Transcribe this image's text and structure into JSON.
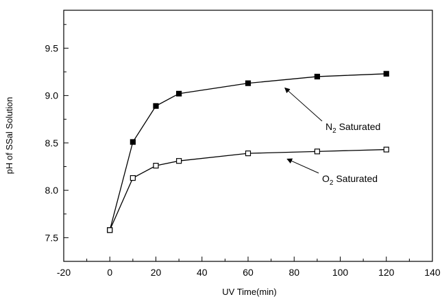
{
  "chart_data": {
    "type": "line",
    "xlabel": "UV Time(min)",
    "ylabel": "pH of SSal Solution",
    "xlim": [
      -20,
      140
    ],
    "ylim": [
      7.25,
      9.9
    ],
    "xticks": [
      -20,
      0,
      20,
      40,
      60,
      80,
      100,
      120,
      140
    ],
    "yticks": [
      7.5,
      8.0,
      8.5,
      9.0,
      9.5
    ],
    "xtick_labels": [
      "-20",
      "0",
      "20",
      "40",
      "60",
      "80",
      "100",
      "120",
      "140"
    ],
    "ytick_labels": [
      "7.5",
      "8.0",
      "8.5",
      "9.0",
      "9.5"
    ],
    "grid": false,
    "series": [
      {
        "name": "N2 Saturated",
        "marker": "filled-square",
        "color": "#000000",
        "x": [
          0,
          10,
          20,
          30,
          60,
          90,
          120
        ],
        "y": [
          7.58,
          8.51,
          8.89,
          9.02,
          9.13,
          9.2,
          9.23
        ]
      },
      {
        "name": "O2 Saturated",
        "marker": "open-square",
        "color": "#000000",
        "x": [
          0,
          10,
          20,
          30,
          60,
          90,
          120
        ],
        "y": [
          7.58,
          8.13,
          8.26,
          8.31,
          8.39,
          8.41,
          8.43
        ]
      }
    ],
    "annotations": [
      {
        "series": 0,
        "prefix": "N",
        "subscript": "2",
        "suffix": " Saturated",
        "target_x": 76,
        "target_y": 9.08
      },
      {
        "series": 1,
        "prefix": "O",
        "subscript": "2",
        "suffix": " Saturated",
        "target_x": 77,
        "target_y": 8.33
      }
    ]
  }
}
